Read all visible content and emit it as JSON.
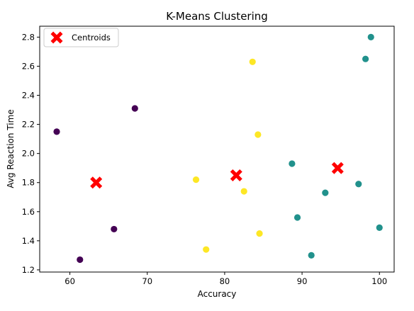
{
  "chart_data": {
    "type": "scatter",
    "title": "K-Means Clustering",
    "xlabel": "Accuracy",
    "ylabel": "Avg Reaction Time",
    "xlim": [
      56.1,
      101.9
    ],
    "ylim": [
      1.185,
      2.875
    ],
    "xticks": [
      60,
      70,
      80,
      90,
      100
    ],
    "yticks": [
      1.2,
      1.4,
      1.6,
      1.8,
      2.0,
      2.2,
      2.4,
      2.6,
      2.8
    ],
    "grid": false,
    "legend": {
      "placement": "top-left",
      "entries": [
        "Centroids"
      ]
    },
    "series": [
      {
        "cluster": 0,
        "color": "#440154",
        "points": [
          {
            "x": 58.3,
            "y": 2.15
          },
          {
            "x": 68.4,
            "y": 2.31
          },
          {
            "x": 65.7,
            "y": 1.48
          },
          {
            "x": 61.3,
            "y": 1.27
          }
        ]
      },
      {
        "cluster": 1,
        "color": "#21918c",
        "points": [
          {
            "x": 98.9,
            "y": 2.8
          },
          {
            "x": 98.2,
            "y": 2.65
          },
          {
            "x": 88.7,
            "y": 1.93
          },
          {
            "x": 97.3,
            "y": 1.79
          },
          {
            "x": 93.0,
            "y": 1.73
          },
          {
            "x": 89.4,
            "y": 1.56
          },
          {
            "x": 100.0,
            "y": 1.49
          },
          {
            "x": 91.2,
            "y": 1.3
          }
        ]
      },
      {
        "cluster": 2,
        "color": "#fde725",
        "points": [
          {
            "x": 83.6,
            "y": 2.63
          },
          {
            "x": 84.3,
            "y": 2.13
          },
          {
            "x": 76.3,
            "y": 1.82
          },
          {
            "x": 82.5,
            "y": 1.74
          },
          {
            "x": 84.5,
            "y": 1.45
          },
          {
            "x": 77.6,
            "y": 1.34
          }
        ]
      }
    ],
    "centroids": {
      "name": "Centroids",
      "color": "#ff0000",
      "marker": "X",
      "points": [
        {
          "x": 63.4,
          "y": 1.8
        },
        {
          "x": 81.5,
          "y": 1.85
        },
        {
          "x": 94.6,
          "y": 1.9
        }
      ]
    }
  }
}
